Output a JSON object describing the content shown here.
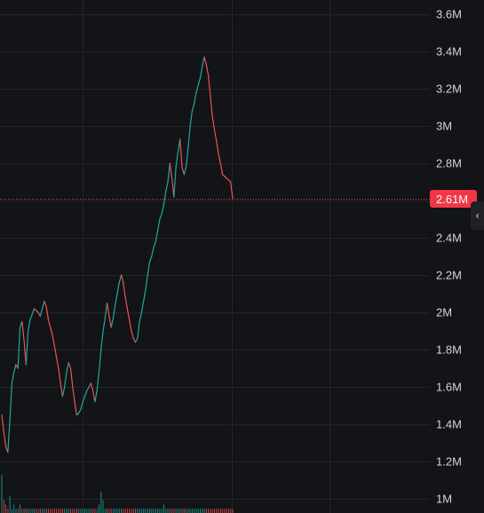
{
  "chart_data": {
    "type": "line",
    "y_axis": {
      "ticks": [
        "3.6M",
        "3.4M",
        "3.2M",
        "3M",
        "2.8M",
        "2.6M",
        "2.4M",
        "2.2M",
        "2M",
        "1.8M",
        "1.6M",
        "1.4M",
        "1.2M",
        "1M"
      ],
      "tick_values": [
        3.6,
        3.4,
        3.2,
        3.0,
        2.8,
        2.6,
        2.4,
        2.2,
        2.0,
        1.8,
        1.6,
        1.4,
        1.2,
        1.0
      ],
      "range": [
        0.98,
        3.62
      ],
      "position": "right"
    },
    "current_price": {
      "label": "2.61M",
      "value": 2.61,
      "color": "#f23645"
    },
    "colors": {
      "up": "#26a69a",
      "down": "#ef5350",
      "grid": "#22242b",
      "background": "#131418"
    },
    "grid": true,
    "series": [
      {
        "values": [
          1.45,
          1.36,
          1.28,
          1.25,
          1.42,
          1.62,
          1.68,
          1.72,
          1.7,
          1.92,
          1.95,
          1.85,
          1.72,
          1.9,
          1.96,
          1.99,
          2.02,
          2.01,
          2.0,
          1.98,
          2.02,
          2.06,
          2.03,
          1.96,
          1.92,
          1.88,
          1.82,
          1.76,
          1.7,
          1.62,
          1.55,
          1.6,
          1.68,
          1.73,
          1.7,
          1.6,
          1.52,
          1.45,
          1.46,
          1.48,
          1.52,
          1.55,
          1.58,
          1.6,
          1.62,
          1.58,
          1.52,
          1.58,
          1.68,
          1.8,
          1.9,
          1.97,
          2.05,
          1.98,
          1.92,
          1.97,
          2.04,
          2.1,
          2.16,
          2.2,
          2.16,
          2.08,
          2.02,
          1.96,
          1.9,
          1.86,
          1.84,
          1.86,
          1.95,
          2.0,
          2.06,
          2.12,
          2.2,
          2.27,
          2.3,
          2.35,
          2.38,
          2.44,
          2.5,
          2.53,
          2.58,
          2.65,
          2.7,
          2.8,
          2.72,
          2.62,
          2.78,
          2.86,
          2.93,
          2.78,
          2.74,
          2.78,
          2.88,
          3.0,
          3.08,
          3.12,
          3.18,
          3.22,
          3.26,
          3.32,
          3.37,
          3.33,
          3.27,
          3.16,
          3.05,
          2.98,
          2.92,
          2.85,
          2.8,
          2.74,
          2.73,
          2.72,
          2.71,
          2.7,
          2.61
        ]
      }
    ],
    "volume": [
      0.9,
      0.3,
      0.2,
      0.1,
      0.4,
      0.1,
      0.2,
      0.1,
      0.1,
      0.2,
      0.1,
      0.1,
      0.1,
      0.1,
      0.1,
      0.1,
      0.1,
      0.1,
      0.1,
      0.1,
      0.1,
      0.1,
      0.1,
      0.1,
      0.1,
      0.1,
      0.1,
      0.1,
      0.1,
      0.1,
      0.1,
      0.1,
      0.1,
      0.1,
      0.1,
      0.1,
      0.1,
      0.1,
      0.1,
      0.1,
      0.1,
      0.1,
      0.1,
      0.1,
      0.1,
      0.1,
      0.1,
      0.1,
      0.2,
      0.5,
      0.3,
      0.1,
      0.1,
      0.1,
      0.1,
      0.1,
      0.1,
      0.1,
      0.1,
      0.1,
      0.1,
      0.1,
      0.1,
      0.1,
      0.1,
      0.1,
      0.1,
      0.1,
      0.1,
      0.1,
      0.1,
      0.1,
      0.1,
      0.1,
      0.1,
      0.1,
      0.1,
      0.1,
      0.1,
      0.1,
      0.2,
      0.1,
      0.1,
      0.1,
      0.1,
      0.1,
      0.1,
      0.1,
      0.1,
      0.1,
      0.1,
      0.1,
      0.1,
      0.1,
      0.1,
      0.1,
      0.1,
      0.1,
      0.1,
      0.1,
      0.1,
      0.1,
      0.1,
      0.1,
      0.1,
      0.1,
      0.1,
      0.1,
      0.1,
      0.1,
      0.1,
      0.1,
      0.1,
      0.1,
      0.1
    ]
  },
  "ui": {
    "collapse_icon": "chevron-left-icon",
    "collapse_glyph": "‹"
  }
}
